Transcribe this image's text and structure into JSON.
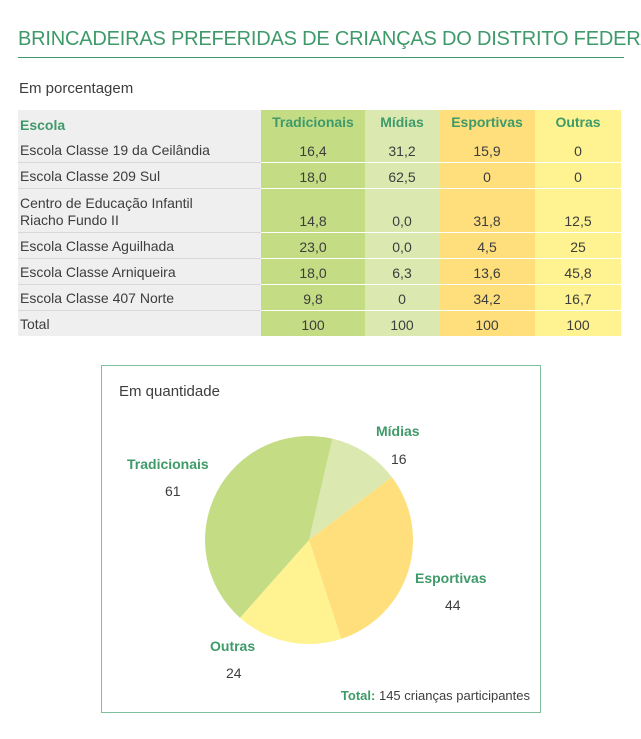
{
  "title": "BRINCADEIRAS PREFERIDAS DE CRIANÇAS DO DISTRITO FEDERAL",
  "chart_data": [
    {
      "type": "table",
      "subtitle": "Em porcentagem",
      "header": {
        "school": "Escola",
        "cols": [
          "Tradicionais",
          "Mídias",
          "Esportivas",
          "Outras"
        ]
      },
      "rows": [
        {
          "school": [
            "Escola Classe 19 da Ceilândia"
          ],
          "values": [
            "16,4",
            "31,2",
            "15,9",
            "0"
          ]
        },
        {
          "school": [
            "Escola Classe 209 Sul"
          ],
          "values": [
            "18,0",
            "62,5",
            "0",
            "0"
          ]
        },
        {
          "school": [
            "Centro de Educação Infantil",
            "Riacho Fundo II"
          ],
          "values": [
            "14,8",
            "0,0",
            "31,8",
            "12,5"
          ]
        },
        {
          "school": [
            "Escola Classe Aguilhada"
          ],
          "values": [
            "23,0",
            "0,0",
            "4,5",
            "25"
          ]
        },
        {
          "school": [
            "Escola Classe Arniqueira"
          ],
          "values": [
            "18,0",
            "6,3",
            "13,6",
            "45,8"
          ]
        },
        {
          "school": [
            "Escola Classe 407 Norte"
          ],
          "values": [
            "9,8",
            "0",
            "34,2",
            "16,7"
          ]
        }
      ],
      "total": {
        "label": "Total",
        "values": [
          "100",
          "100",
          "100",
          "100"
        ]
      },
      "colors": {
        "Tradicionais": "#c4dc84",
        "Mídias": "#dbe9b0",
        "Esportivas": "#fedf7c",
        "Outras": "#fef390"
      }
    },
    {
      "type": "pie",
      "title": "Em quantidade",
      "slices": [
        {
          "name": "Mídias",
          "value": 16,
          "color": "#dbe9b0"
        },
        {
          "name": "Esportivas",
          "value": 44,
          "color": "#fedf7c"
        },
        {
          "name": "Outras",
          "value": 24,
          "color": "#fef390"
        },
        {
          "name": "Tradicionais",
          "value": 61,
          "color": "#c4dc84"
        }
      ],
      "total_label": "Total:",
      "total_text": "145 crianças participantes"
    }
  ]
}
